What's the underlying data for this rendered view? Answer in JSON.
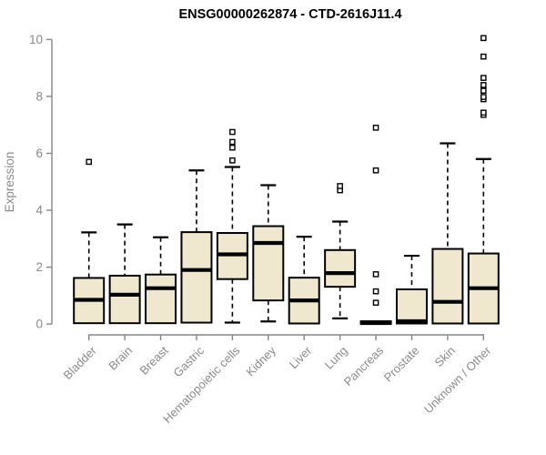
{
  "title": "ENSG00000262874 - CTD-2616J11.4",
  "colors": {
    "background": "#ffffff",
    "box_fill": "#efe8cf",
    "box_border": "#000000",
    "median": "#000000",
    "whisker": "#000000",
    "outlier_stroke": "#000000",
    "outlier_fill": "#ffffff",
    "axis": "#858585",
    "tick_label": "#8a8a8a",
    "title_color": "#000000"
  },
  "chart_data": {
    "type": "boxplot",
    "title": "ENSG00000262874 - CTD-2616J11.4",
    "xlabel": "",
    "ylabel": "Expression",
    "ylim": [
      0,
      10
    ],
    "yticks": [
      0,
      2,
      4,
      6,
      8,
      10
    ],
    "grid": false,
    "legend": "none",
    "categories": [
      "Bladder",
      "Brain",
      "Breast",
      "Gastric",
      "Hematopoietic cells",
      "Kidney",
      "Liver",
      "Lung",
      "Pancreas",
      "Prostate",
      "Skin",
      "Unknown / Other"
    ],
    "series": [
      {
        "name": "Bladder",
        "whisker_low": 0.03,
        "q1": 0.03,
        "median": 0.85,
        "q3": 1.62,
        "whisker_high": 3.22,
        "outliers": [
          5.7
        ]
      },
      {
        "name": "Brain",
        "whisker_low": 0.03,
        "q1": 0.03,
        "median": 1.03,
        "q3": 1.7,
        "whisker_high": 3.5,
        "outliers": []
      },
      {
        "name": "Breast",
        "whisker_low": 0.03,
        "q1": 0.03,
        "median": 1.26,
        "q3": 1.74,
        "whisker_high": 3.05,
        "outliers": []
      },
      {
        "name": "Gastric",
        "whisker_low": 0.05,
        "q1": 0.05,
        "median": 1.9,
        "q3": 3.23,
        "whisker_high": 5.4,
        "outliers": []
      },
      {
        "name": "Hematopoietic cells",
        "whisker_low": 0.05,
        "q1": 1.58,
        "median": 2.45,
        "q3": 3.2,
        "whisker_high": 5.52,
        "outliers": [
          5.75,
          6.2,
          6.4,
          6.75
        ]
      },
      {
        "name": "Kidney",
        "whisker_low": 0.09,
        "q1": 0.83,
        "median": 2.85,
        "q3": 3.44,
        "whisker_high": 4.88,
        "outliers": []
      },
      {
        "name": "Liver",
        "whisker_low": 0.02,
        "q1": 0.02,
        "median": 0.83,
        "q3": 1.63,
        "whisker_high": 3.07,
        "outliers": []
      },
      {
        "name": "Lung",
        "whisker_low": 0.2,
        "q1": 1.31,
        "median": 1.79,
        "q3": 2.6,
        "whisker_high": 3.6,
        "outliers": [
          4.7,
          4.85
        ]
      },
      {
        "name": "Pancreas",
        "whisker_low": 0.0,
        "q1": 0.0,
        "median": 0.05,
        "q3": 0.1,
        "whisker_high": 0.1,
        "outliers": [
          0.75,
          1.15,
          1.75,
          5.4,
          6.9
        ]
      },
      {
        "name": "Prostate",
        "whisker_low": 0.02,
        "q1": 0.02,
        "median": 0.1,
        "q3": 1.22,
        "whisker_high": 2.4,
        "outliers": []
      },
      {
        "name": "Skin",
        "whisker_low": 0.02,
        "q1": 0.02,
        "median": 0.78,
        "q3": 2.64,
        "whisker_high": 6.35,
        "outliers": []
      },
      {
        "name": "Unknown / Other",
        "whisker_low": 0.02,
        "q1": 0.02,
        "median": 1.26,
        "q3": 2.48,
        "whisker_high": 5.8,
        "outliers": [
          7.35,
          7.43,
          7.9,
          7.98,
          8.2,
          8.4,
          8.65,
          9.4,
          10.05
        ]
      }
    ]
  }
}
